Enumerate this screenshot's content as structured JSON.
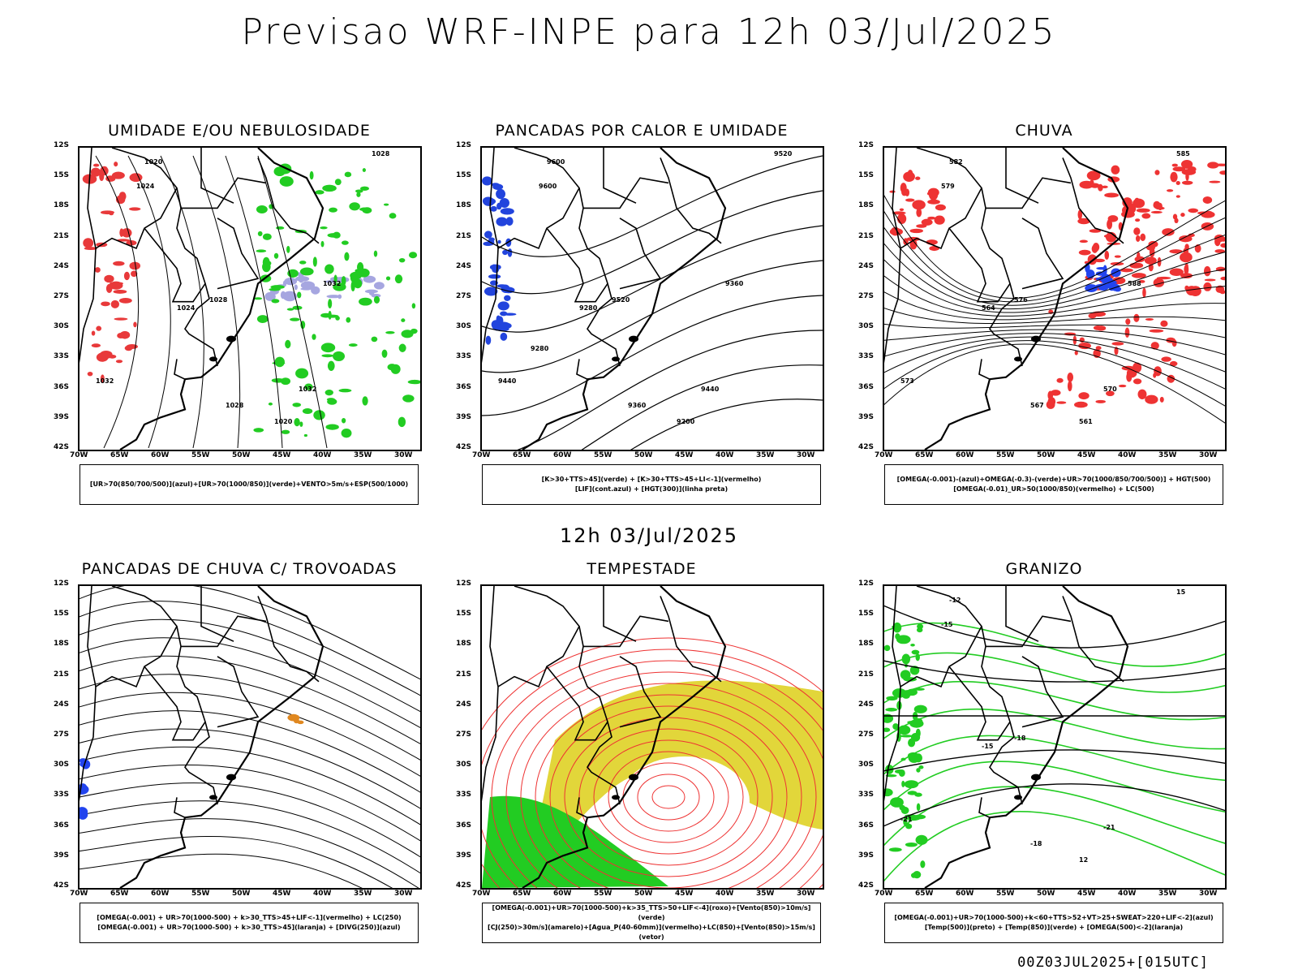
{
  "title": "Previsao WRF-INPE  para 12h 03/Jul/2025",
  "subtitle": "12h 03/Jul/2025",
  "footer": "00Z03JUL2025+[015UTC]",
  "axes": {
    "lat_labels": [
      "12S",
      "15S",
      "18S",
      "21S",
      "24S",
      "27S",
      "30S",
      "33S",
      "36S",
      "39S",
      "42S"
    ],
    "lon_labels": [
      "70W",
      "65W",
      "60W",
      "55W",
      "50W",
      "45W",
      "40W",
      "35W",
      "30W"
    ]
  },
  "panels": [
    {
      "title": "UMIDADE E/OU NEBULOSIDADE",
      "legend": [
        "[UR>70(850/700/500)](azul)+[UR>70(1000/850)](verde)+VENTO>5m/s+ESP(500/1000)"
      ],
      "contour_labels": [
        "1020",
        "1024",
        "1028",
        "1032",
        "1032",
        "1028",
        "1024",
        "1020",
        "1028",
        "1032"
      ],
      "colors": {
        "contour": "#000000",
        "thickness": "#e8393a",
        "humidity_low": "#22cc22",
        "humidity_high": "#a6a6e0"
      }
    },
    {
      "title": "PANCADAS POR CALOR E UMIDADE",
      "legend": [
        "[K>30+TTS>45](verde) + [K>30+TTS>45+LI<-1](vermelho)",
        "[LIF](cont.azul) + [HGT(300)](linha preta)"
      ],
      "contour_labels": [
        "9600",
        "9600",
        "9520",
        "9440",
        "9440",
        "9360",
        "9280",
        "9200",
        "9520",
        "9360",
        "9280"
      ],
      "colors": {
        "contour": "#000000",
        "lif": "#2244dd"
      }
    },
    {
      "title": "CHUVA",
      "legend": [
        "[OMEGA(-0.001)-(azul)+OMEGA(-0.3)-(verde)+UR>70(1000/850/700/500)] + HGT(500)",
        "[OMEGA(-0.01)_UR>50(1000/850)(vermelho) + LC(500)"
      ],
      "contour_labels": [
        "582",
        "579",
        "576",
        "573",
        "570",
        "567",
        "564",
        "561",
        "585",
        "588"
      ],
      "colors": {
        "contour": "#000000",
        "rain": "#ee3333",
        "omega": "#2244ee"
      }
    },
    {
      "title": "PANCADAS DE CHUVA C/ TROVOADAS",
      "legend": [
        "[OMEGA(-0.001) + UR>70(1000-500) + k>30_TTS>45+LIF<-1](vermelho) + LC(250)",
        "[OMEGA(-0.001) + UR>70(1000-500) + k>30_TTS>45](laranja) + [DIVG(250)](azul)"
      ],
      "contour_labels": [],
      "colors": {
        "contour": "#000000",
        "divg": "#2244ee",
        "orange": "#e08820"
      }
    },
    {
      "title": "TEMPESTADE",
      "legend": [
        "[OMEGA(-0.001)+UR>70(1000-500)+k>35_TTS>50+LIF<-4](roxo)+[Vento(850)>10m/s](verde)",
        "[CJ(250)>30m/s](amarelo)+[Agua_P(40-60mm)](vermelho)+LC(850)+[Vento(850)>15m/s](vetor)"
      ],
      "contour_labels": [],
      "colors": {
        "jet": "#e2d63a",
        "wind": "#22cc22",
        "stream": "#ee3333"
      }
    },
    {
      "title": "GRANIZO",
      "legend": [
        "[OMEGA(-0.001)+UR>70(1000-500)+k<60+TTS>52+VT>25+SWEAT>220+LIF<-2](azul)",
        "[Temp(500)](preto) + [Temp(850)](verde) + [OMEGA(500)<-2](laranja)"
      ],
      "contour_labels": [
        "-12",
        "-15",
        "-18",
        "-21",
        "-21",
        "-18",
        "-15",
        "12",
        "15"
      ],
      "colors": {
        "t500": "#000000",
        "t850": "#22cc22"
      }
    }
  ]
}
